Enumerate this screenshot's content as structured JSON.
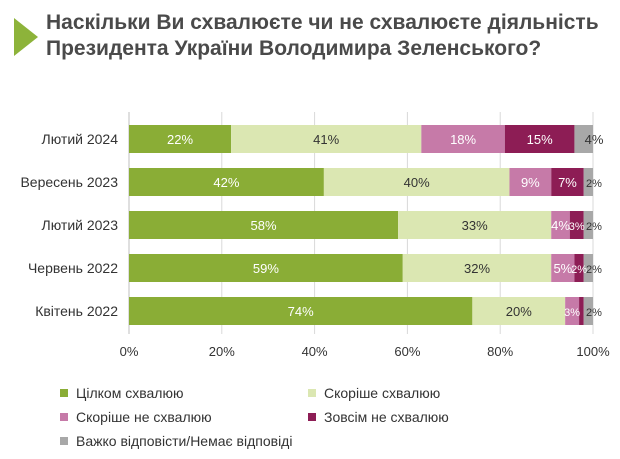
{
  "title": "Наскільки Ви схвалюєте чи не схвалюєте діяльність Президента України Володимира Зеленського?",
  "colors": {
    "accent": "#8db33a",
    "series": [
      "#8aad36",
      "#dbe7b2",
      "#c67aa8",
      "#8d1d55",
      "#a8a8a8"
    ]
  },
  "chart_data": {
    "type": "bar",
    "orientation": "horizontal",
    "stacked": true,
    "categories": [
      "Лютий 2024",
      "Вересень 2023",
      "Лютий 2023",
      "Червень 2022",
      "Квітень 2022"
    ],
    "series": [
      {
        "name": "Цілком схвалюю",
        "values": [
          22,
          42,
          58,
          59,
          74
        ],
        "labels": [
          "22%",
          "42%",
          "58%",
          "59%",
          "74%"
        ]
      },
      {
        "name": "Скоріше схвалюю",
        "values": [
          41,
          40,
          33,
          32,
          20
        ],
        "labels": [
          "41%",
          "40%",
          "33%",
          "32%",
          "20%"
        ]
      },
      {
        "name": "Скоріше не схвалюю",
        "values": [
          18,
          9,
          4,
          5,
          3
        ],
        "labels": [
          "18%",
          "9%",
          "4%",
          "5%",
          "3%"
        ]
      },
      {
        "name": "Зовсім не схвалюю",
        "values": [
          15,
          7,
          3,
          2,
          1
        ],
        "labels": [
          "15%",
          "7%",
          "3%",
          "2%",
          ""
        ]
      },
      {
        "name": "Важко відповісти/Немає відповіді",
        "values": [
          4,
          2,
          2,
          2,
          2
        ],
        "labels": [
          "4%",
          "2%",
          "2%",
          "2%",
          "2%"
        ]
      }
    ],
    "xlim": [
      0,
      100
    ],
    "xticks": [
      "0%",
      "20%",
      "40%",
      "60%",
      "80%",
      "100%"
    ],
    "grid": true,
    "legend_position": "bottom"
  }
}
